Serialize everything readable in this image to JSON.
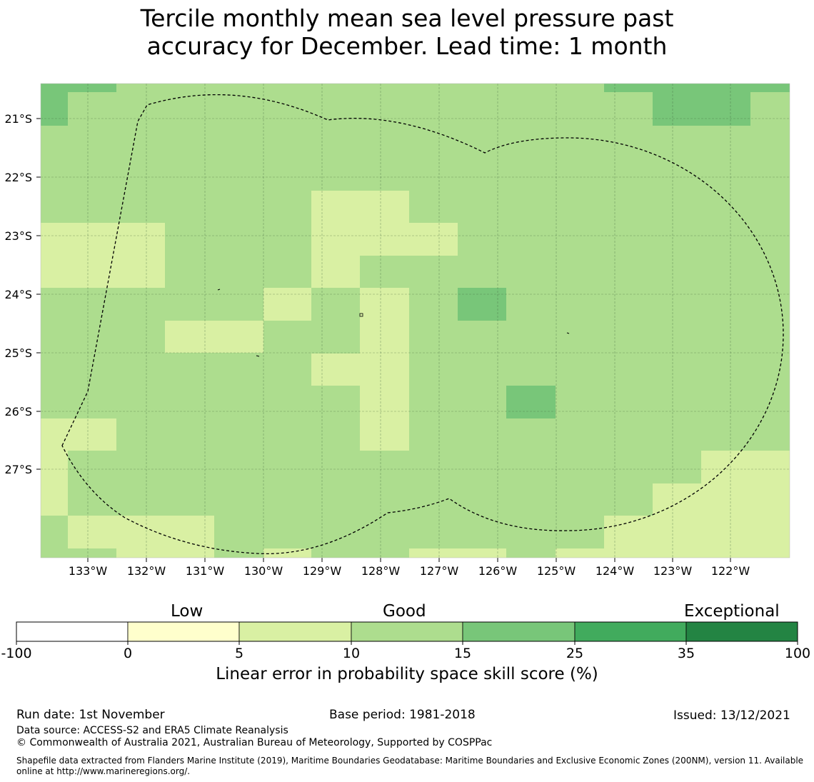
{
  "title_line1": "Tercile monthly mean sea level pressure past",
  "title_line2": "accuracy for December. Lead time: 1 month",
  "lat_labels": [
    "21°S",
    "22°S",
    "23°S",
    "24°S",
    "25°S",
    "26°S",
    "27°S"
  ],
  "lon_labels": [
    "133°W",
    "132°W",
    "131°W",
    "130°W",
    "129°W",
    "128°W",
    "127°W",
    "126°W",
    "125°W",
    "124°W",
    "123°W",
    "122°W"
  ],
  "legend": {
    "category_labels": [
      "Low",
      "Good",
      "Exceptional"
    ],
    "tick_labels": [
      "-100",
      "0",
      "5",
      "10",
      "15",
      "25",
      "35",
      "100"
    ],
    "colors": [
      "#ffffff",
      "#ffffcc",
      "#d9f0a3",
      "#addd8e",
      "#78c679",
      "#41ab5d",
      "#238443"
    ],
    "title": "Linear error in probability space skill score (%)"
  },
  "palette": {
    "c5_10": "#d9f0a3",
    "c10_15": "#addd8e",
    "c15_25": "#78c679"
  },
  "footer": {
    "run_date": "Run date: 1st November",
    "base_period": "Base period: 1981-2018",
    "issued": "Issued: 13/12/2021",
    "data_source": "Data source: ACCESS-S2 and ERA5 Climate Reanalysis",
    "copyright": "© Commonwealth of Australia 2021, Australian Bureau of Meteorology, Supported by COSPPac",
    "shapefile_note": "Shapefile data extracted from Flanders Marine Institute (2019), Maritime Boundaries Geodatabase: Maritime Boundaries and Exclusive Economic Zones (200NM), version 11. Available online at http://www.marineregions.org/."
  }
}
